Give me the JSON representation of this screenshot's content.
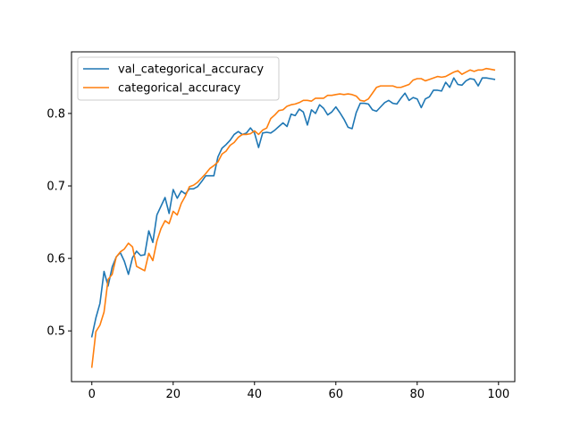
{
  "chart_data": {
    "type": "line",
    "title": "",
    "xlabel": "",
    "ylabel": "",
    "xlim": [
      -5,
      104
    ],
    "ylim": [
      0.43,
      0.885
    ],
    "xticks": [
      0,
      20,
      40,
      60,
      80,
      100
    ],
    "yticks": [
      0.5,
      0.6,
      0.7,
      0.8
    ],
    "grid": false,
    "legend_position": "top-left",
    "x": [
      0,
      1,
      2,
      3,
      4,
      5,
      6,
      7,
      8,
      9,
      10,
      11,
      12,
      13,
      14,
      15,
      16,
      17,
      18,
      19,
      20,
      21,
      22,
      23,
      24,
      25,
      26,
      27,
      28,
      29,
      30,
      31,
      32,
      33,
      34,
      35,
      36,
      37,
      38,
      39,
      40,
      41,
      42,
      43,
      44,
      45,
      46,
      47,
      48,
      49,
      50,
      51,
      52,
      53,
      54,
      55,
      56,
      57,
      58,
      59,
      60,
      61,
      62,
      63,
      64,
      65,
      66,
      67,
      68,
      69,
      70,
      71,
      72,
      73,
      74,
      75,
      76,
      77,
      78,
      79,
      80,
      81,
      82,
      83,
      84,
      85,
      86,
      87,
      88,
      89,
      90,
      91,
      92,
      93,
      94,
      95,
      96,
      97,
      98,
      99
    ],
    "series": [
      {
        "name": "val_categorical_accuracy",
        "color": "#1f77b4",
        "values": [
          0.492,
          0.518,
          0.538,
          0.582,
          0.562,
          0.588,
          0.602,
          0.608,
          0.596,
          0.578,
          0.601,
          0.61,
          0.604,
          0.605,
          0.638,
          0.622,
          0.66,
          0.672,
          0.684,
          0.662,
          0.695,
          0.683,
          0.693,
          0.689,
          0.696,
          0.696,
          0.699,
          0.706,
          0.714,
          0.714,
          0.714,
          0.74,
          0.752,
          0.757,
          0.763,
          0.771,
          0.775,
          0.771,
          0.773,
          0.78,
          0.773,
          0.753,
          0.773,
          0.774,
          0.773,
          0.777,
          0.782,
          0.787,
          0.782,
          0.799,
          0.797,
          0.806,
          0.802,
          0.784,
          0.805,
          0.8,
          0.812,
          0.807,
          0.798,
          0.802,
          0.809,
          0.801,
          0.792,
          0.781,
          0.779,
          0.801,
          0.814,
          0.814,
          0.813,
          0.805,
          0.803,
          0.809,
          0.815,
          0.818,
          0.814,
          0.813,
          0.821,
          0.828,
          0.818,
          0.822,
          0.82,
          0.808,
          0.82,
          0.823,
          0.832,
          0.832,
          0.831,
          0.843,
          0.836,
          0.849,
          0.84,
          0.839,
          0.845,
          0.848,
          0.847,
          0.838,
          0.849,
          0.849,
          0.848,
          0.847
        ]
      },
      {
        "name": "categorical_accuracy",
        "color": "#ff7f0e",
        "values": [
          0.45,
          0.499,
          0.508,
          0.526,
          0.571,
          0.578,
          0.602,
          0.609,
          0.613,
          0.621,
          0.616,
          0.589,
          0.586,
          0.583,
          0.607,
          0.597,
          0.624,
          0.641,
          0.652,
          0.648,
          0.665,
          0.66,
          0.676,
          0.686,
          0.699,
          0.701,
          0.705,
          0.711,
          0.717,
          0.724,
          0.728,
          0.733,
          0.744,
          0.748,
          0.756,
          0.76,
          0.767,
          0.771,
          0.771,
          0.772,
          0.776,
          0.771,
          0.777,
          0.78,
          0.793,
          0.798,
          0.804,
          0.805,
          0.81,
          0.812,
          0.813,
          0.815,
          0.818,
          0.818,
          0.817,
          0.821,
          0.821,
          0.821,
          0.825,
          0.825,
          0.826,
          0.827,
          0.826,
          0.827,
          0.826,
          0.824,
          0.818,
          0.817,
          0.82,
          0.828,
          0.836,
          0.838,
          0.838,
          0.838,
          0.838,
          0.836,
          0.836,
          0.838,
          0.84,
          0.846,
          0.848,
          0.848,
          0.845,
          0.847,
          0.849,
          0.851,
          0.85,
          0.851,
          0.854,
          0.857,
          0.859,
          0.854,
          0.857,
          0.86,
          0.858,
          0.86,
          0.86,
          0.862,
          0.861,
          0.86
        ]
      }
    ]
  }
}
